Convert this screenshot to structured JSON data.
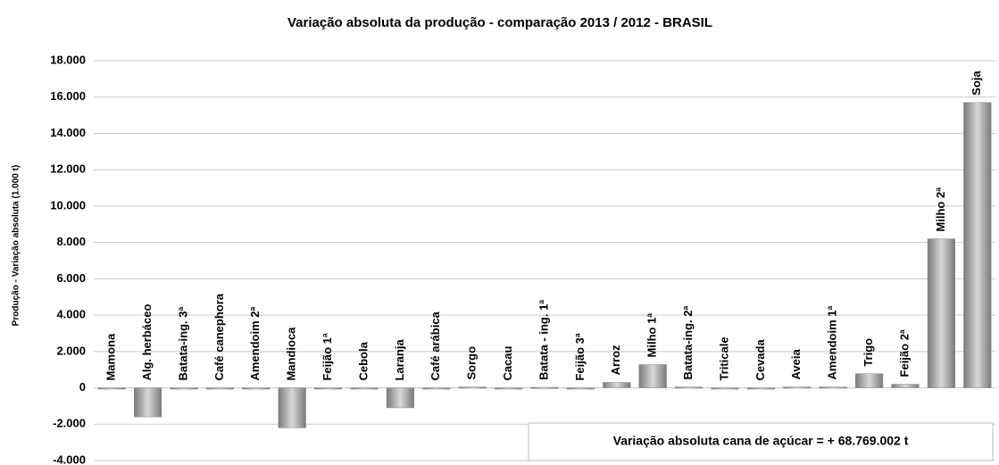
{
  "chart_data": {
    "type": "bar",
    "title": "Variação absoluta da produção - comparação 2013 / 2012 - BRASIL",
    "y_label": "Produção - Variação absoluta (1.000 t)",
    "annotation": "Variação absoluta cana de açúcar = + 68.769.002 t",
    "categories": [
      "Mamona",
      "Alg. herbáceo",
      "Batata-ing. 3ª",
      "Café canephora",
      "Amendoim 2ª",
      "Mandioca",
      "Feijão 1ª",
      "Cebola",
      "Laranja",
      "Café arábica",
      "Sorgo",
      "Cacau",
      "Batata - ing. 1ª",
      "Feijão 3ª",
      "Arroz",
      "Milho 1ª",
      "Batata-ing. 2ª",
      "Triticale",
      "Cevada",
      "Aveia",
      "Amendoim 1ª",
      "Trigo",
      "Feijão 2ª",
      "Milho 2ª",
      "Soja"
    ],
    "values": [
      -10,
      -1600,
      -20,
      -30,
      0,
      -2200,
      -30,
      -20,
      -1100,
      -20,
      50,
      0,
      30,
      0,
      300,
      1280,
      50,
      0,
      0,
      50,
      50,
      780,
      200,
      8200,
      15700
    ],
    "color": "#8c8c8c",
    "ylim": [
      -4000,
      18000
    ],
    "yticks": [
      {
        "value": -4000,
        "label": "-4.000"
      },
      {
        "value": -2000,
        "label": "-2.000"
      },
      0,
      {
        "value": 2000,
        "label": "2.000"
      },
      {
        "value": 4000,
        "label": "4.000"
      },
      {
        "value": 6000,
        "label": "6.000"
      },
      {
        "value": 8000,
        "label": "8.000"
      },
      {
        "value": 10000,
        "label": "10.000"
      },
      {
        "value": 12000,
        "label": "12.000"
      },
      {
        "value": 14000,
        "label": "14.000"
      },
      {
        "value": 16000,
        "label": "16.000"
      },
      {
        "value": 18000,
        "label": "18.000"
      }
    ],
    "grid": true
  }
}
